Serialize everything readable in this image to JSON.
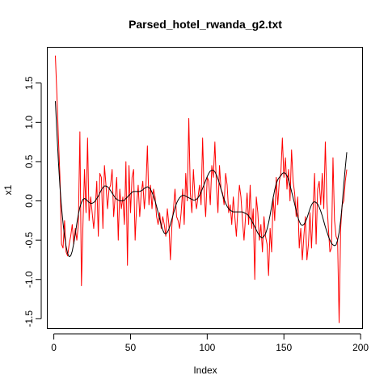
{
  "chart_data": {
    "type": "line",
    "title": "Parsed_hotel_rwanda_g2.txt",
    "xlabel": "Index",
    "ylabel": "x1",
    "xlim": [
      -4,
      201
    ],
    "ylim": [
      -1.62,
      1.95
    ],
    "x_ticks": [
      0,
      50,
      100,
      150,
      200
    ],
    "x_tick_labels": [
      "0",
      "50",
      "100",
      "150",
      "200"
    ],
    "y_ticks": [
      -1.5,
      -1.0,
      -0.5,
      0.0,
      0.5,
      1.0,
      1.5
    ],
    "y_tick_labels": [
      "-1.5",
      "-1.0",
      "-0.5",
      "0.0",
      "0.5",
      "1.0",
      "1.5"
    ],
    "grid": false,
    "legend": "none",
    "series": [
      {
        "color": "#ff0000",
        "x_start": 1,
        "x_step": 1,
        "values": [
          1.85,
          1.35,
          0.8,
          0.3,
          -0.55,
          -0.6,
          -0.25,
          -0.65,
          -0.7,
          -0.55,
          -0.45,
          -0.3,
          -0.55,
          -0.35,
          -0.5,
          -0.3,
          0.88,
          -1.08,
          -0.3,
          0.4,
          -0.15,
          0.8,
          -0.25,
          0.05,
          -0.15,
          -0.35,
          -0.1,
          0.25,
          -0.45,
          0.35,
          0.3,
          -0.35,
          0.45,
          0.2,
          -0.1,
          0.15,
          0.2,
          0.4,
          -0.2,
          0.05,
          0.3,
          -0.5,
          0.15,
          -0.1,
          0.05,
          -0.3,
          0.5,
          -0.82,
          0.45,
          -0.15,
          0.3,
          0.4,
          -0.5,
          -0.05,
          0.2,
          -0.2,
          0.1,
          0.25,
          -0.1,
          0.15,
          0.7,
          -0.05,
          0.2,
          -0.1,
          0.15,
          0.05,
          -0.2,
          -0.3,
          -0.15,
          -0.35,
          -0.2,
          -0.3,
          -0.45,
          -0.1,
          -0.3,
          -0.75,
          -0.3,
          -0.1,
          0.15,
          -0.2,
          -0.25,
          -0.35,
          -0.15,
          0.15,
          -0.3,
          0.35,
          0.0,
          1.05,
          0.1,
          -0.15,
          0.4,
          0.05,
          -0.1,
          0.05,
          0.2,
          -0.05,
          0.8,
          0.1,
          -0.2,
          0.3,
          0.25,
          -0.05,
          0.45,
          0.3,
          0.75,
          0.2,
          -0.15,
          0.45,
          0.15,
          0.1,
          -0.05,
          0.35,
          0.2,
          -0.15,
          -0.05,
          -0.3,
          0.05,
          -0.2,
          -0.45,
          -0.1,
          0.2,
          0.05,
          -0.25,
          -0.5,
          -0.2,
          0.1,
          -0.3,
          0.2,
          -0.35,
          -0.1,
          -1.0,
          0.05,
          -0.15,
          -0.5,
          -0.3,
          -0.65,
          -0.2,
          -0.45,
          -0.55,
          -0.95,
          -0.35,
          -0.65,
          0.05,
          -0.25,
          0.3,
          -0.05,
          0.25,
          0.35,
          0.8,
          0.3,
          0.55,
          0.15,
          0.4,
          0.0,
          0.65,
          0.25,
          0.1,
          -0.2,
          0.05,
          -0.6,
          -0.35,
          -0.75,
          -0.45,
          -0.2,
          -0.75,
          -0.55,
          -0.15,
          -0.6,
          -0.1,
          0.35,
          -0.55,
          0.15,
          0.25,
          -0.05,
          0.35,
          -0.1,
          0.75,
          0.0,
          -0.35,
          -0.65,
          -0.6,
          0.55,
          -0.25,
          -0.45,
          -0.5,
          -1.55,
          -0.35,
          -0.05,
          0.0,
          0.25,
          0.4
        ]
      },
      {
        "color": "#000000",
        "x_start": 1,
        "x_step": 1,
        "values": [
          1.27,
          0.87,
          0.5,
          0.18,
          -0.08,
          -0.28,
          -0.45,
          -0.58,
          -0.67,
          -0.71,
          -0.7,
          -0.64,
          -0.54,
          -0.42,
          -0.29,
          -0.17,
          -0.08,
          -0.02,
          0.02,
          0.03,
          0.02,
          0.0,
          -0.02,
          -0.03,
          -0.03,
          -0.02,
          0.0,
          0.03,
          0.06,
          0.1,
          0.14,
          0.17,
          0.19,
          0.19,
          0.18,
          0.16,
          0.13,
          0.1,
          0.07,
          0.04,
          0.02,
          0.01,
          0.0,
          0.0,
          0.0,
          0.01,
          0.03,
          0.05,
          0.07,
          0.09,
          0.11,
          0.12,
          0.12,
          0.12,
          0.12,
          0.12,
          0.13,
          0.14,
          0.16,
          0.17,
          0.18,
          0.17,
          0.15,
          0.11,
          0.06,
          0.0,
          -0.07,
          -0.15,
          -0.23,
          -0.31,
          -0.37,
          -0.41,
          -0.42,
          -0.4,
          -0.36,
          -0.3,
          -0.23,
          -0.16,
          -0.09,
          -0.03,
          0.01,
          0.04,
          0.06,
          0.07,
          0.07,
          0.06,
          0.05,
          0.04,
          0.03,
          0.02,
          0.01,
          0.01,
          0.02,
          0.04,
          0.07,
          0.11,
          0.16,
          0.21,
          0.26,
          0.31,
          0.35,
          0.38,
          0.39,
          0.39,
          0.37,
          0.33,
          0.28,
          0.22,
          0.15,
          0.08,
          0.02,
          -0.03,
          -0.07,
          -0.1,
          -0.12,
          -0.13,
          -0.14,
          -0.14,
          -0.14,
          -0.14,
          -0.14,
          -0.14,
          -0.14,
          -0.15,
          -0.16,
          -0.17,
          -0.19,
          -0.22,
          -0.25,
          -0.29,
          -0.33,
          -0.37,
          -0.41,
          -0.44,
          -0.46,
          -0.47,
          -0.45,
          -0.42,
          -0.36,
          -0.28,
          -0.18,
          -0.07,
          0.04,
          0.14,
          0.22,
          0.27,
          0.3,
          0.32,
          0.35,
          0.36,
          0.35,
          0.32,
          0.27,
          0.2,
          0.12,
          0.04,
          -0.04,
          -0.12,
          -0.2,
          -0.26,
          -0.3,
          -0.31,
          -0.3,
          -0.27,
          -0.22,
          -0.16,
          -0.1,
          -0.05,
          -0.02,
          -0.01,
          -0.02,
          -0.04,
          -0.08,
          -0.13,
          -0.19,
          -0.26,
          -0.33,
          -0.39,
          -0.45,
          -0.5,
          -0.54,
          -0.56,
          -0.57,
          -0.56,
          -0.5,
          -0.4,
          -0.25,
          -0.05,
          0.2,
          0.42,
          0.62
        ]
      }
    ]
  }
}
